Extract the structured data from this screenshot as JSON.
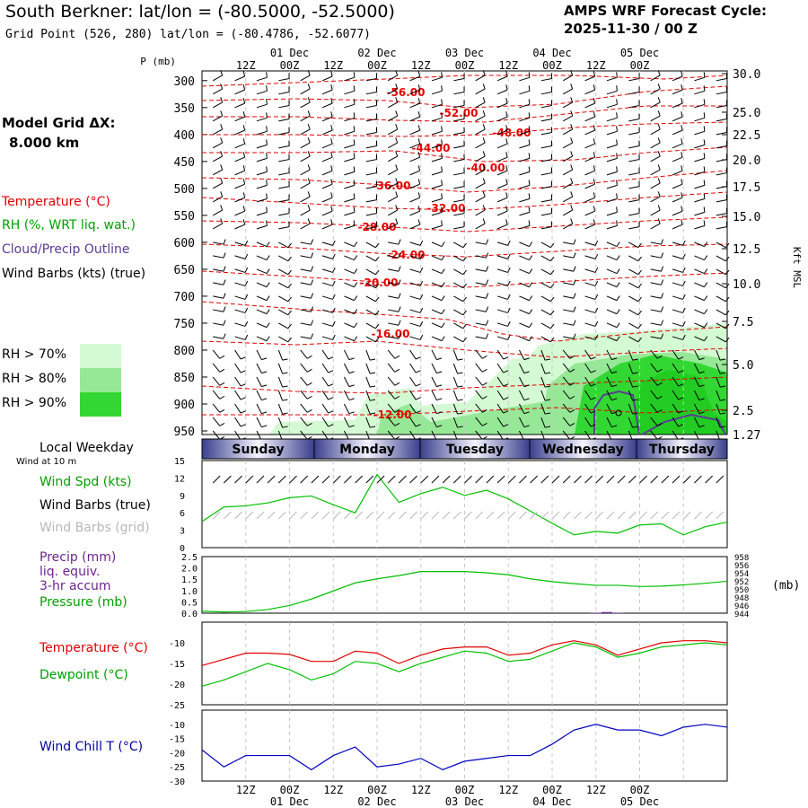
{
  "header": {
    "title": "South Berkner:  lat/lon = (-80.5000, -52.5000)",
    "subtitle": "Grid Point (526, 280) lat/lon = (-80.4786, -52.6077)",
    "cycle_line1": "AMPS WRF Forecast Cycle:",
    "cycle_line2": "2025-11-30 / 00  Z"
  },
  "model_grid": {
    "line1": "Model Grid ΔX:",
    "line2": "8.000 km"
  },
  "legend": {
    "temperature": "Temperature (°C)",
    "rh": "RH (%, WRT liq. wat.)",
    "cloud": "Cloud/Precip Outline",
    "wind": "Wind Barbs (kts) (true)",
    "rh70": "RH > 70%",
    "rh80": "RH > 80%",
    "rh90": "RH > 90%",
    "rh70_color": "#d4fad4",
    "rh80_color": "#96e896",
    "rh90_color": "#33d733"
  },
  "time_axis": {
    "hour_labels": [
      "12Z",
      "00Z",
      "12Z",
      "00Z",
      "12Z",
      "00Z",
      "12Z",
      "00Z",
      "12Z",
      "00Z"
    ],
    "date_labels": [
      "01 Dec",
      "02 Dec",
      "03 Dec",
      "04 Dec",
      "05 Dec"
    ]
  },
  "weekday": {
    "header": "Local Weekday",
    "subheader": "Wind at 10 m",
    "days": [
      "Sunday",
      "Monday",
      "Tuesday",
      "Wednesday",
      "Thursday"
    ]
  },
  "panels": {
    "wind": {
      "label_speed": "Wind Spd (kts)",
      "label_true": "Wind Barbs (true)",
      "label_grid": "Wind Barbs (grid)",
      "yticks": [
        "15",
        "12",
        "9",
        "6",
        "3",
        "0"
      ]
    },
    "precip": {
      "label1": "Precip (mm)",
      "label2": "liq. equiv.",
      "label3": "3-hr accum",
      "label4": "Pressure (mb)",
      "unit_right": "(mb)",
      "yticks_left": [
        "2.5",
        "2.0",
        "1.5",
        "1.0",
        "0.5",
        "0.0"
      ],
      "yticks_right": [
        "958",
        "956",
        "954",
        "952",
        "950",
        "948",
        "946",
        "944"
      ]
    },
    "temp": {
      "label1": "Temperature (°C)",
      "label2": "Dewpoint (°C)",
      "yticks": [
        "-10",
        "-15",
        "-20",
        "-25"
      ]
    },
    "chill": {
      "label": "Wind Chill T (°C)",
      "yticks": [
        "-10",
        "-15",
        "-20",
        "-25",
        "-30"
      ]
    }
  },
  "chart_data": [
    {
      "type": "area",
      "panel": "vertical cross-section",
      "ylabel_left": "P (mb)",
      "ylabel_right": "Kft MSL",
      "pressure_ticks": [
        "300",
        "350",
        "400",
        "450",
        "500",
        "550",
        "600",
        "650",
        "700",
        "750",
        "800",
        "850",
        "900",
        "950"
      ],
      "height_ticks": [
        "30.0",
        "25.0",
        "22.5",
        "20.0",
        "17.5",
        "15.0",
        "12.5",
        "10.0",
        "7.5",
        "5.0",
        "2.5",
        "1.27"
      ],
      "temperature_contour_labels": [
        "-56.00",
        "-52.00",
        "-48.00",
        "-44.00",
        "-40.00",
        "-36.00",
        "-32.00",
        "-28.00",
        "-24.00",
        "-20.00",
        "-16.00",
        "-12.00"
      ],
      "temperature_contour_color": "#e60000",
      "cloud_outline_color": "#5a3c96"
    },
    {
      "type": "line",
      "panel": "wind speed",
      "x_hours": [
        0,
        6,
        12,
        18,
        24,
        30,
        36,
        42,
        48,
        54,
        60,
        66,
        72,
        78,
        84,
        90,
        96,
        102,
        108,
        114,
        120,
        126,
        132,
        138,
        144
      ],
      "ylim": [
        0,
        15
      ],
      "series": [
        {
          "name": "Wind Spd (kts)",
          "color": "#00c000",
          "values": [
            4.5,
            7,
            7.2,
            7.7,
            8.6,
            8.9,
            7.4,
            6.0,
            12.6,
            7.8,
            9.3,
            10.4,
            9.0,
            9.9,
            8.4,
            6.3,
            4.2,
            2.2,
            2.8,
            2.5,
            3.9,
            4.1,
            2.2,
            3.6,
            4.4
          ]
        }
      ]
    },
    {
      "type": "line",
      "panel": "precip and pressure",
      "x_hours": [
        0,
        6,
        12,
        18,
        24,
        30,
        36,
        42,
        48,
        54,
        60,
        66,
        72,
        78,
        84,
        90,
        96,
        102,
        108,
        114,
        120,
        126,
        132,
        138,
        144
      ],
      "ylim_left": [
        0,
        2.5
      ],
      "ylim_right": [
        944,
        958
      ],
      "series": [
        {
          "name": "Pressure (mb)",
          "color": "#00c000",
          "values": [
            944.5,
            944.3,
            944.4,
            944.9,
            945.9,
            947.5,
            949.5,
            951.5,
            952.5,
            953.3,
            954.3,
            954.3,
            954.3,
            954.0,
            953.5,
            952.5,
            951.8,
            951.3,
            950.9,
            950.9,
            950.6,
            950.7,
            951.0,
            951.4,
            951.9
          ]
        },
        {
          "name": "Precip (mm)",
          "color": "#6a2590",
          "x_hours": [
            108,
            111,
            114
          ],
          "values": [
            0.02,
            0.05,
            0.02
          ]
        }
      ]
    },
    {
      "type": "line",
      "panel": "temperature",
      "x_hours": [
        0,
        6,
        12,
        18,
        24,
        30,
        36,
        42,
        48,
        54,
        60,
        66,
        72,
        78,
        84,
        90,
        96,
        102,
        108,
        114,
        120,
        126,
        132,
        138,
        144
      ],
      "ylim": [
        -25,
        -5
      ],
      "series": [
        {
          "name": "Temperature (°C)",
          "color": "#e00000",
          "values": [
            -15.5,
            -14,
            -12.5,
            -12.5,
            -12.8,
            -14.5,
            -14.5,
            -12,
            -12.5,
            -15,
            -13,
            -11.5,
            -11,
            -11,
            -13,
            -12.5,
            -10.5,
            -9.5,
            -10.5,
            -13,
            -11.5,
            -10,
            -9.5,
            -9.5,
            -10
          ]
        },
        {
          "name": "Dewpoint (°C)",
          "color": "#00c000",
          "values": [
            -20.5,
            -19,
            -17,
            -15,
            -16.5,
            -19,
            -17.5,
            -14.5,
            -15,
            -17,
            -15,
            -13.5,
            -12,
            -12.5,
            -14.5,
            -14,
            -12,
            -10,
            -11,
            -13.5,
            -12.5,
            -11,
            -10.5,
            -10,
            -10.5
          ]
        }
      ]
    },
    {
      "type": "line",
      "panel": "wind chill",
      "x_hours": [
        0,
        6,
        12,
        18,
        24,
        30,
        36,
        42,
        48,
        54,
        60,
        66,
        72,
        78,
        84,
        90,
        96,
        102,
        108,
        114,
        120,
        126,
        132,
        138,
        144
      ],
      "ylim": [
        -30,
        -5
      ],
      "series": [
        {
          "name": "Wind Chill T (°C)",
          "color": "#0000c0",
          "values": [
            -19,
            -25,
            -21,
            -21,
            -21,
            -26,
            -21,
            -18,
            -25,
            -24,
            -22,
            -26,
            -23,
            -22,
            -21,
            -21,
            -17,
            -12,
            -10,
            -12,
            -12,
            -14,
            -11,
            -10,
            -11
          ]
        }
      ]
    }
  ]
}
